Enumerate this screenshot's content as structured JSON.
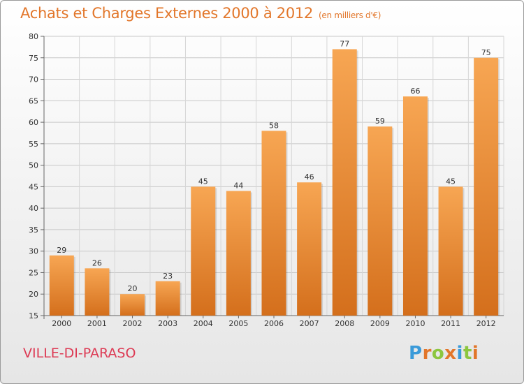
{
  "title": "Achats et Charges Externes 2000 à 2012",
  "subtitle": "(en milliers d'€)",
  "commune": "VILLE-DI-PARASO",
  "logo": {
    "letters": [
      "P",
      "r",
      "o",
      "x",
      "i",
      "t",
      "i"
    ],
    "colors": [
      "#3a9ad9",
      "#e2762a",
      "#8cc63f",
      "#e2762a",
      "#3a9ad9",
      "#8cc63f",
      "#e2762a"
    ]
  },
  "chart_data": {
    "type": "bar",
    "categories": [
      "2000",
      "2001",
      "2002",
      "2003",
      "2004",
      "2005",
      "2006",
      "2007",
      "2008",
      "2009",
      "2010",
      "2011",
      "2012"
    ],
    "values": [
      29,
      26,
      20,
      23,
      45,
      44,
      58,
      46,
      77,
      59,
      66,
      45,
      75
    ],
    "title": "Achats et Charges Externes 2000 à 2012",
    "xlabel": "",
    "ylabel": "",
    "ylim": [
      15,
      80
    ],
    "yticks": [
      15,
      20,
      25,
      30,
      35,
      40,
      45,
      50,
      55,
      60,
      65,
      70,
      75,
      80
    ],
    "grid": true,
    "bar_color": "#f29a46"
  }
}
